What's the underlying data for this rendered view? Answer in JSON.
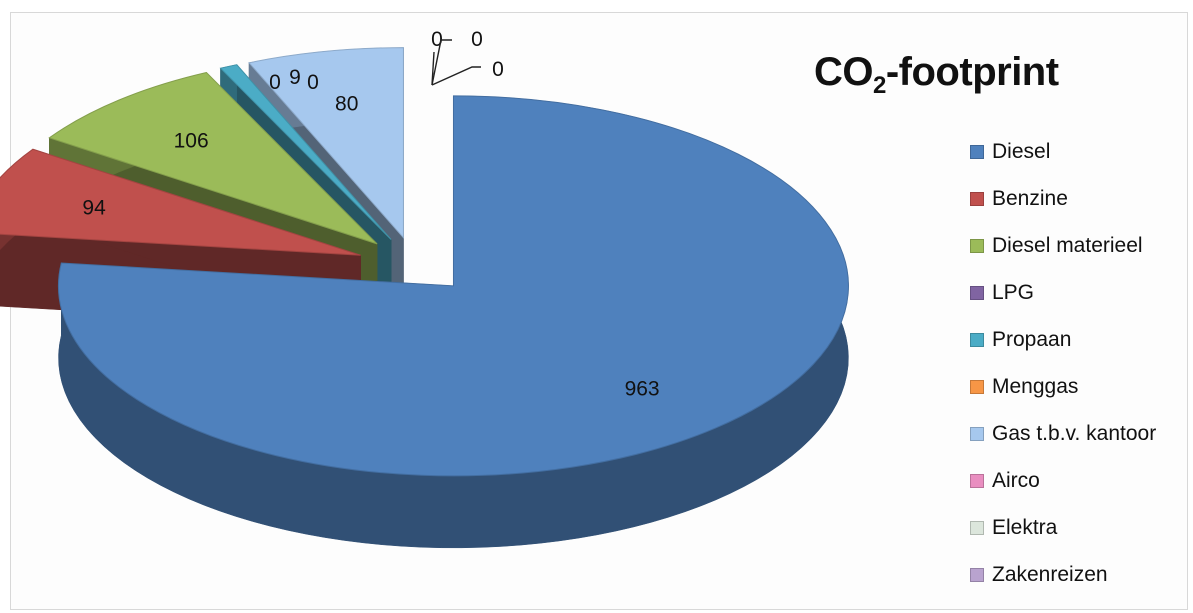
{
  "chart_data": {
    "type": "pie",
    "title_main": "CO",
    "title_sub": "2",
    "title_rest": "-footprint",
    "categories": [
      "Diesel",
      "Benzine",
      "Diesel materieel",
      "LPG",
      "Propaan",
      "Menggas",
      "Gas t.b.v. kantoor",
      "Airco",
      "Elektra",
      "Zakenreizen"
    ],
    "values": [
      963,
      94,
      106,
      0,
      9,
      0,
      80,
      0,
      0,
      0
    ],
    "colors": [
      "#4f81bd",
      "#c0504d",
      "#9bbb59",
      "#8064a2",
      "#4bacc6",
      "#f79646",
      "#a6c8ee",
      "#e98ec0",
      "#dce6dc",
      "#b9a3cf"
    ],
    "data_labels": [
      "963",
      "94",
      "106",
      "0",
      "9",
      "0",
      "80",
      "0",
      "0",
      "0"
    ],
    "legend_position": "right",
    "style": "3d-exploded-pie"
  }
}
